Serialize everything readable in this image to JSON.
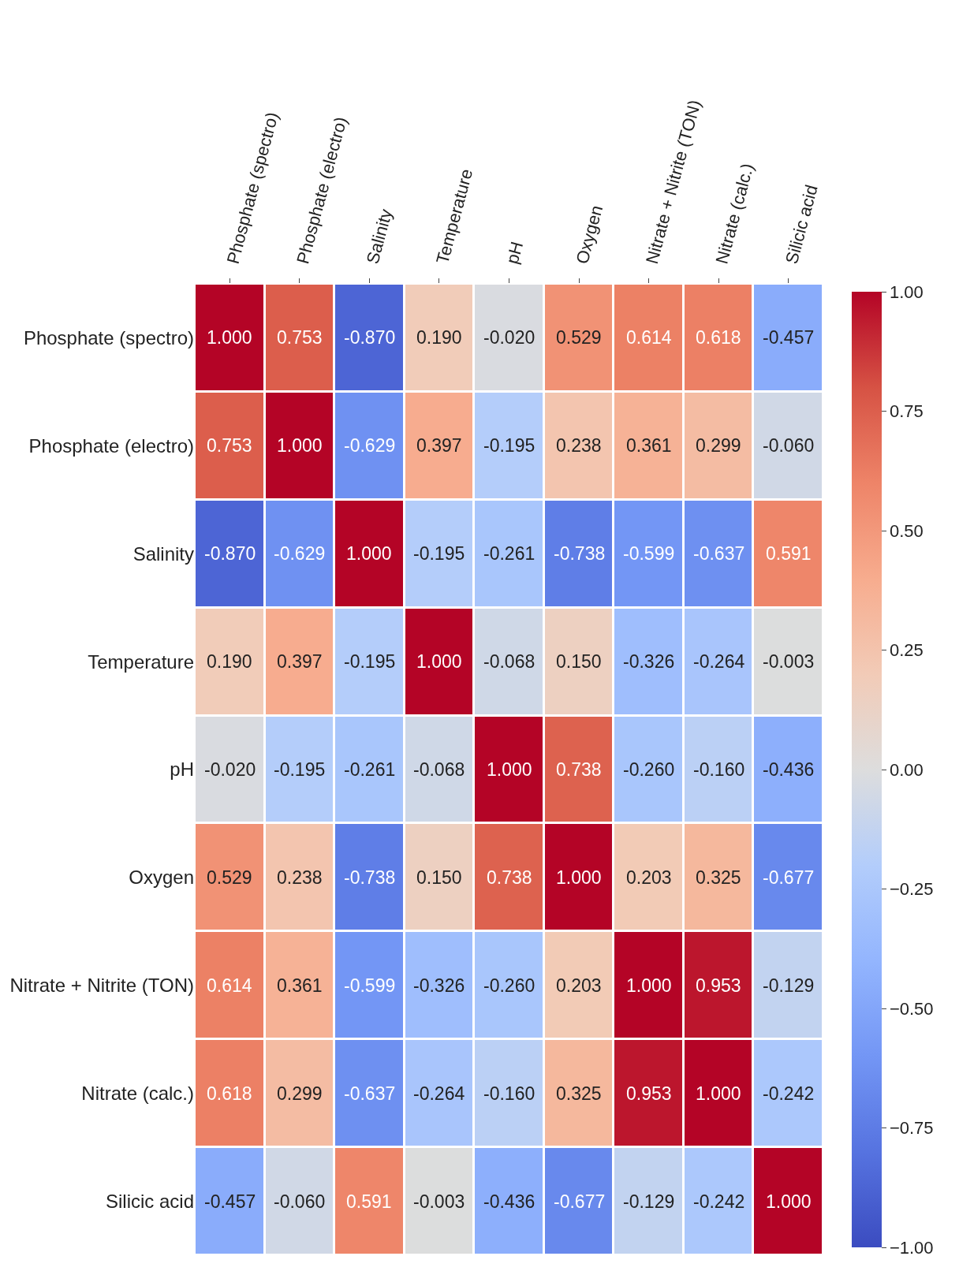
{
  "chart_data": {
    "type": "heatmap",
    "categories": [
      "Phosphate (spectro)",
      "Phosphate (electro)",
      "Salinity",
      "Temperature",
      "pH",
      "Oxygen",
      "Nitrate + Nitrite (TON)",
      "Nitrate (calc.)",
      "Silicic acid"
    ],
    "y_categories": [
      "Phosphate (spectro)",
      "Phosphate (electro)",
      "Salinity",
      "Temperature",
      "pH",
      "Oxygen",
      "Nitrate + Nitrite (TON)",
      "Nitrate (calc.)",
      "Silicic acid"
    ],
    "cells": [
      [
        1.0,
        0.753,
        -0.87,
        0.19,
        -0.02,
        0.529,
        0.614,
        0.618,
        -0.457
      ],
      [
        0.753,
        1.0,
        -0.629,
        0.397,
        -0.195,
        0.238,
        0.361,
        0.299,
        -0.06
      ],
      [
        -0.87,
        -0.629,
        1.0,
        -0.195,
        -0.261,
        -0.738,
        -0.599,
        -0.637,
        0.591
      ],
      [
        0.19,
        0.397,
        -0.195,
        1.0,
        -0.068,
        0.15,
        -0.326,
        -0.264,
        -0.003
      ],
      [
        -0.02,
        -0.195,
        -0.261,
        -0.068,
        1.0,
        0.738,
        -0.26,
        -0.16,
        -0.436
      ],
      [
        0.529,
        0.238,
        -0.738,
        0.15,
        0.738,
        1.0,
        0.203,
        0.325,
        -0.677
      ],
      [
        0.614,
        0.361,
        -0.599,
        -0.326,
        -0.26,
        0.203,
        1.0,
        0.953,
        -0.129
      ],
      [
        0.618,
        0.299,
        -0.637,
        -0.264,
        -0.16,
        0.325,
        0.953,
        1.0,
        -0.242
      ],
      [
        -0.457,
        -0.06,
        0.591,
        -0.003,
        -0.436,
        -0.677,
        -0.129,
        -0.242,
        1.0
      ]
    ],
    "cell_labels": [
      [
        "1.000",
        "0.753",
        "-0.870",
        "0.190",
        "-0.020",
        "0.529",
        "0.614",
        "0.618",
        "-0.457"
      ],
      [
        "0.753",
        "1.000",
        "-0.629",
        "0.397",
        "-0.195",
        "0.238",
        "0.361",
        "0.299",
        "-0.060"
      ],
      [
        "-0.870",
        "-0.629",
        "1.000",
        "-0.195",
        "-0.261",
        "-0.738",
        "-0.599",
        "-0.637",
        "0.591"
      ],
      [
        "0.190",
        "0.397",
        "-0.195",
        "1.000",
        "-0.068",
        "0.150",
        "-0.326",
        "-0.264",
        "-0.003"
      ],
      [
        "-0.020",
        "-0.195",
        "-0.261",
        "-0.068",
        "1.000",
        "0.738",
        "-0.260",
        "-0.160",
        "-0.436"
      ],
      [
        "0.529",
        "0.238",
        "-0.738",
        "0.150",
        "0.738",
        "1.000",
        "0.203",
        "0.325",
        "-0.677"
      ],
      [
        "0.614",
        "0.361",
        "-0.599",
        "-0.326",
        "-0.260",
        "0.203",
        "1.000",
        "0.953",
        "-0.129"
      ],
      [
        "0.618",
        "0.299",
        "-0.637",
        "-0.264",
        "-0.160",
        "0.325",
        "0.953",
        "1.000",
        "-0.242"
      ],
      [
        "-0.457",
        "-0.060",
        "0.591",
        "-0.003",
        "-0.436",
        "-0.677",
        "-0.129",
        "-0.242",
        "1.000"
      ]
    ],
    "clim": [
      -1,
      1
    ],
    "cticks": [
      {
        "value": -1,
        "label": "−1.00"
      },
      {
        "value": -0.75,
        "label": "−0.75"
      },
      {
        "value": -0.5,
        "label": "−0.50"
      },
      {
        "value": -0.25,
        "label": "−0.25"
      },
      {
        "value": 0,
        "label": "0.00"
      },
      {
        "value": 0.25,
        "label": "0.25"
      },
      {
        "value": 0.5,
        "label": "0.50"
      },
      {
        "value": 0.75,
        "label": "0.75"
      },
      {
        "value": 1,
        "label": "1.00"
      }
    ]
  }
}
